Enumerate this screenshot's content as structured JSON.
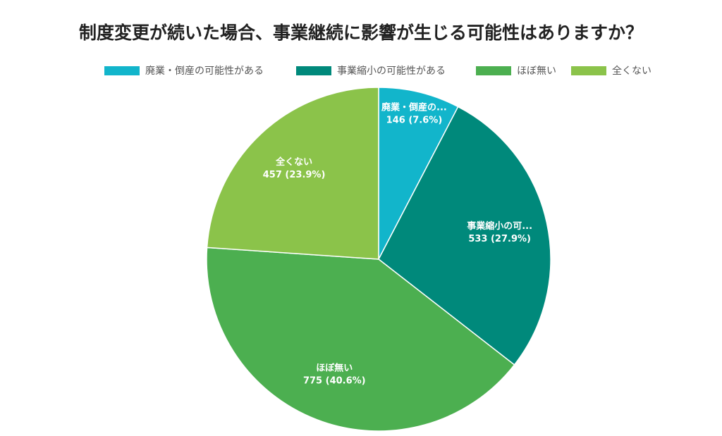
{
  "chart_data": {
    "type": "pie",
    "title": "制度変更が続いた場合、事業継続に影響が生じる可能性はありますか？",
    "categories": [
      "廃業・倒産の可能性がある",
      "事業縮小の可能性がある",
      "ほぼ無い",
      "全くない"
    ],
    "slice_labels": [
      "廃業・倒産の...",
      "事業縮小の可...",
      "ほぼ無い",
      "全くない"
    ],
    "values": [
      146,
      533,
      775,
      457
    ],
    "value_labels": [
      "146 (7.6%)",
      "533 (27.9%)",
      "775 (40.6%)",
      "457 (23.9%)"
    ],
    "colors": [
      "#12b5cb",
      "#00897b",
      "#4caf50",
      "#8bc34a"
    ],
    "legend": "top"
  }
}
